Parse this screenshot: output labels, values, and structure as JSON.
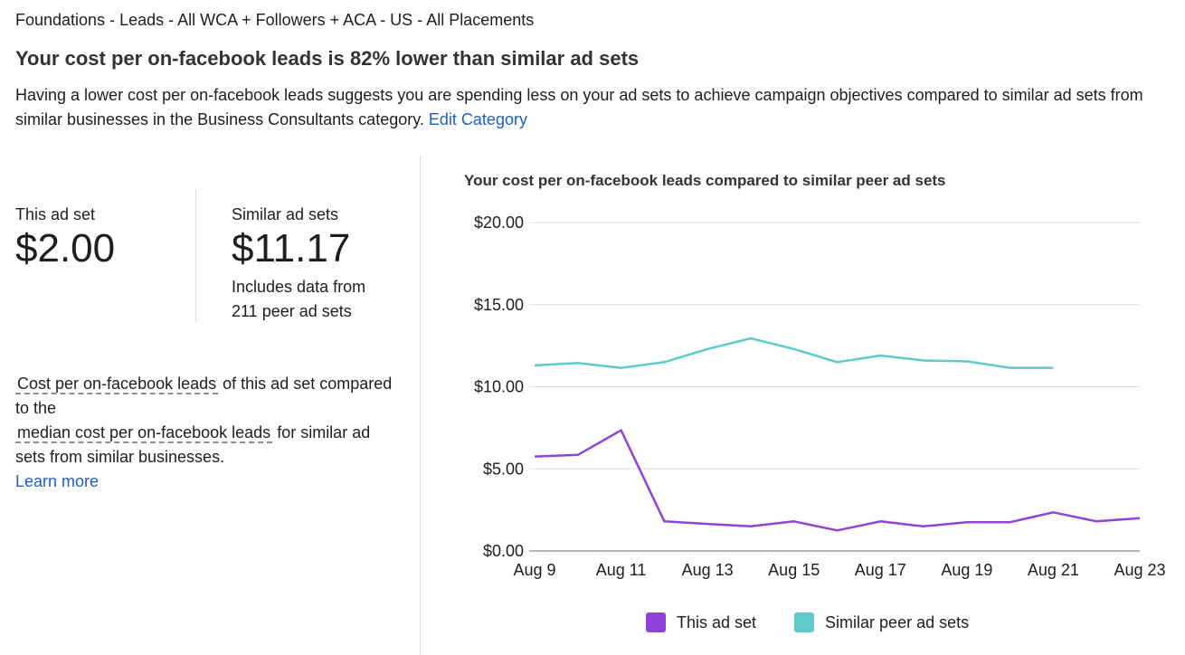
{
  "breadcrumb": "Foundations - Leads - All WCA + Followers + ACA - US - All Placements",
  "headline": "Your cost per on-facebook leads is 82% lower than similar ad sets",
  "description": "Having a lower cost per on-facebook leads suggests you are spending less on your ad sets to achieve campaign objectives compared to similar ad sets from similar businesses in the Business Consultants category.",
  "edit_category_link": "Edit Category",
  "this_ad_set": {
    "label": "This ad set",
    "value": "$2.00"
  },
  "similar_ad_sets": {
    "label": "Similar ad sets",
    "value": "$11.17",
    "note_line1": "Includes data from",
    "note_line2": "211 peer ad sets"
  },
  "explanation": {
    "term1": "Cost per on-facebook leads",
    "text1": "of this ad set compared to the",
    "term2": "median cost per on-facebook leads",
    "text2": "for similar ad sets from similar businesses.",
    "learn_more": "Learn more"
  },
  "chart_data": {
    "type": "line",
    "title": "Your cost per on-facebook leads compared to similar peer ad sets",
    "x": [
      "Aug 9",
      "Aug 10",
      "Aug 11",
      "Aug 12",
      "Aug 13",
      "Aug 14",
      "Aug 15",
      "Aug 16",
      "Aug 17",
      "Aug 18",
      "Aug 19",
      "Aug 20",
      "Aug 21",
      "Aug 22",
      "Aug 23"
    ],
    "x_tick_labels": [
      "Aug 9",
      "Aug 11",
      "Aug 13",
      "Aug 15",
      "Aug 17",
      "Aug 19",
      "Aug 21",
      "Aug 23"
    ],
    "y_tick_labels": [
      "$0.00",
      "$5.00",
      "$10.00",
      "$15.00",
      "$20.00"
    ],
    "ylim": [
      0,
      20
    ],
    "grid": true,
    "legend_position": "bottom",
    "series": [
      {
        "name": "This ad set",
        "color": "#8e44d8",
        "values": [
          5.75,
          5.85,
          7.35,
          1.8,
          1.65,
          1.5,
          1.8,
          1.25,
          1.8,
          1.5,
          1.75,
          1.75,
          2.35,
          1.8,
          2.0
        ]
      },
      {
        "name": "Similar peer ad sets",
        "color": "#5ecbcb",
        "values": [
          11.3,
          11.45,
          11.15,
          11.5,
          12.3,
          12.95,
          12.3,
          11.5,
          11.9,
          11.6,
          11.55,
          11.15,
          11.15,
          null,
          null
        ]
      }
    ]
  }
}
